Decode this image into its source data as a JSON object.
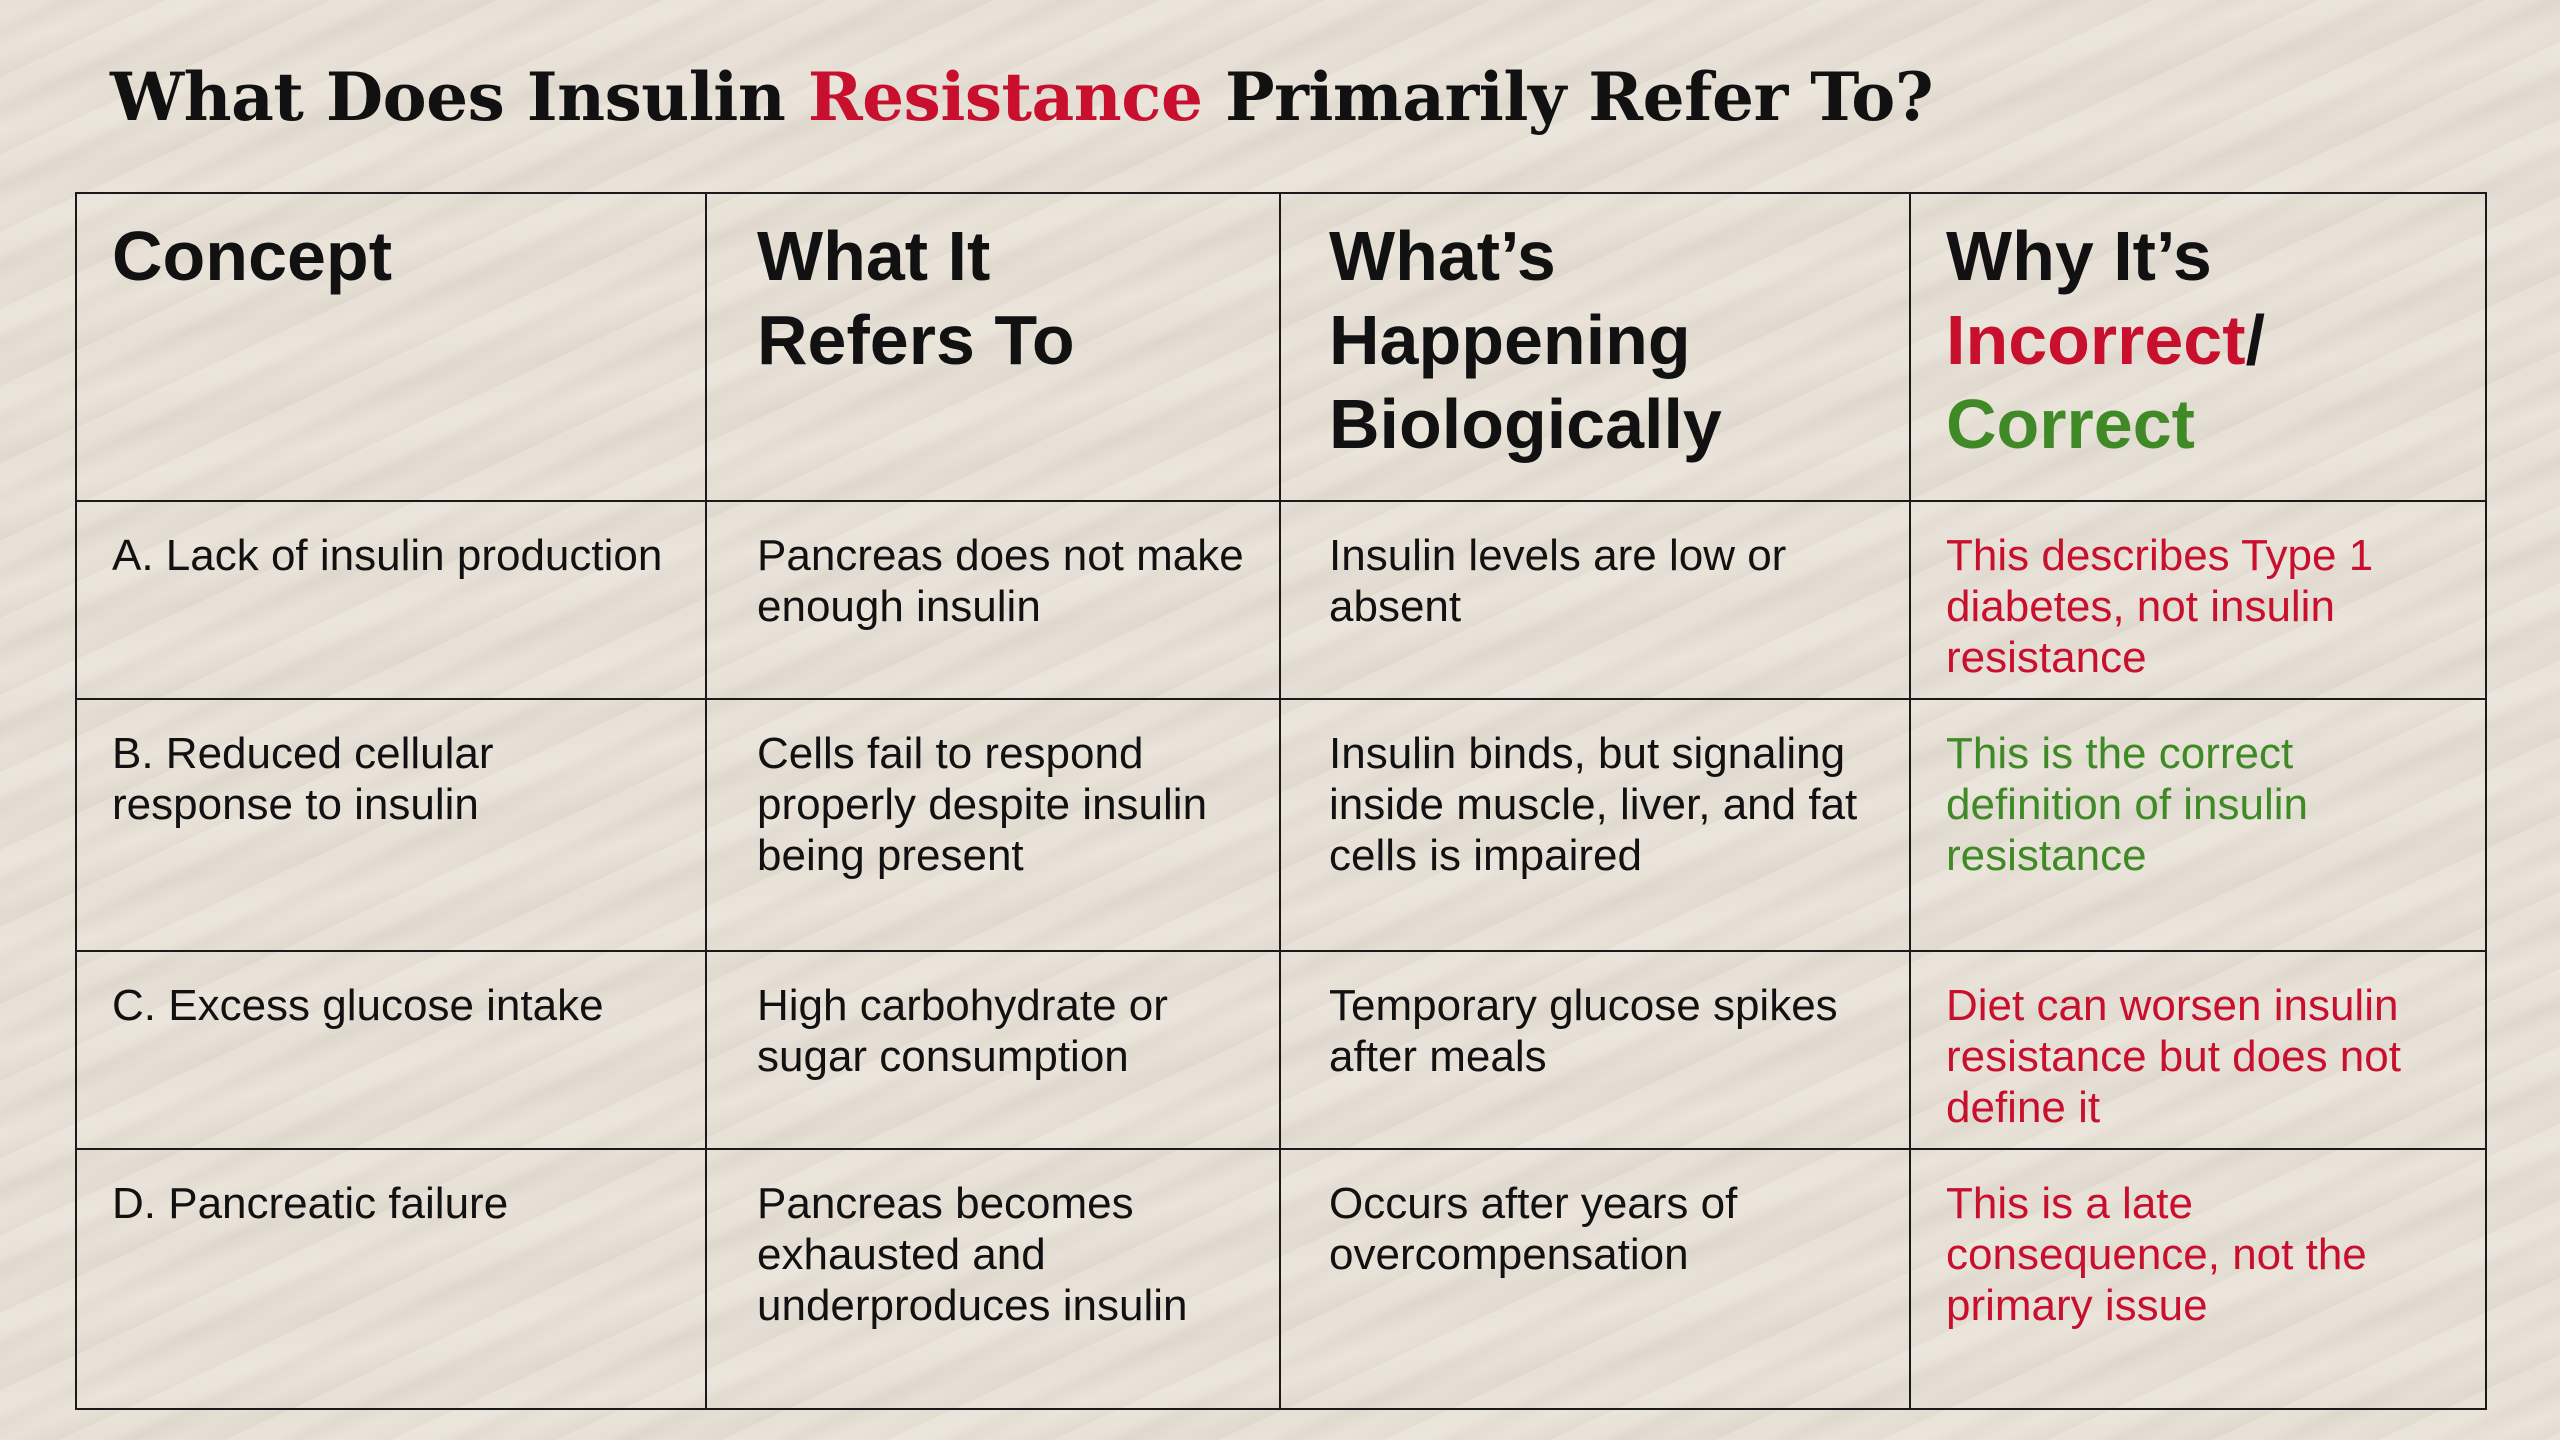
{
  "title": {
    "part1": "What Does Insulin ",
    "highlight": "Resistance",
    "part2": " Primarily Refer To?"
  },
  "headers": {
    "concept": "Concept",
    "refers_line1": "What It",
    "refers_line2": "Refers To",
    "bio_line1": "What’s",
    "bio_line2": "Happening",
    "bio_line3": "Biologically",
    "why_line1": "Why It’s",
    "why_incorrect": "Incorrect",
    "why_slash": "/",
    "why_correct": "Correct"
  },
  "rows": [
    {
      "concept": "A. Lack of insulin production",
      "refers": "Pancreas does not make enough insulin",
      "bio": "Insulin levels are low or absent",
      "why": "This describes Type 1 diabetes, not insulin resistance",
      "status": "incorrect"
    },
    {
      "concept": "B. Reduced cellular response to insulin",
      "refers": "Cells fail to respond properly despite insulin being present",
      "bio": "Insulin binds, but signaling inside muscle, liver, and fat cells is impaired",
      "why": "This is the correct definition of insulin resistance",
      "status": "correct"
    },
    {
      "concept": "C. Excess glucose intake",
      "refers": "High carbohydrate or sugar consumption",
      "bio": "Temporary glucose spikes after meals",
      "why": "Diet can worsen insulin resistance but does not define it",
      "status": "incorrect"
    },
    {
      "concept": "D. Pancreatic failure",
      "refers": "Pancreas becomes exhausted and underproduces insulin",
      "bio": "Occurs after years of overcompensation",
      "why": "This is a late consequence, not the primary issue",
      "status": "incorrect"
    }
  ],
  "colors": {
    "incorrect": "#c8102e",
    "correct": "#3f8a26",
    "text": "#111111",
    "background": "#e8e1d6"
  }
}
